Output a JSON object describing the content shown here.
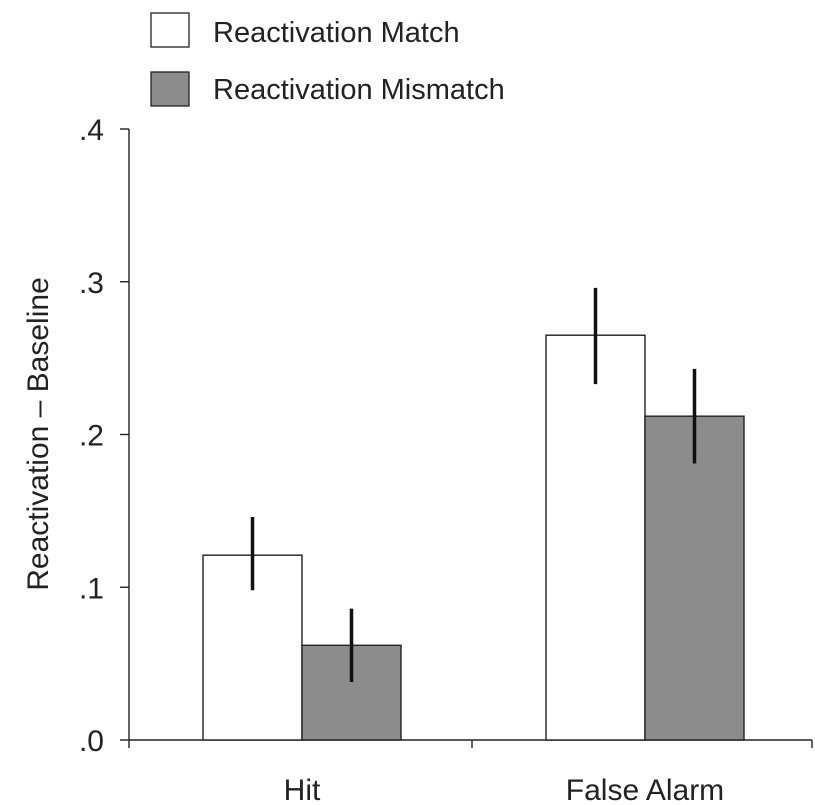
{
  "chart_data": {
    "type": "bar",
    "title": "",
    "xlabel": "",
    "ylabel": "Reactivation – Baseline",
    "ylim": [
      0,
      0.4
    ],
    "yticks": [
      0.0,
      0.1,
      0.2,
      0.3,
      0.4
    ],
    "ytick_labels": [
      ".0",
      ".1",
      ".2",
      ".3",
      ".4"
    ],
    "categories": [
      "Hit",
      "False Alarm"
    ],
    "series": [
      {
        "name": "Reactivation Match",
        "color": "#ffffff",
        "values": [
          0.121,
          0.265
        ],
        "error_low": [
          0.098,
          0.233
        ],
        "error_high": [
          0.146,
          0.296
        ]
      },
      {
        "name": "Reactivation Mismatch",
        "color": "#8c8c8c",
        "values": [
          0.062,
          0.212
        ],
        "error_low": [
          0.038,
          0.181
        ],
        "error_high": [
          0.086,
          0.243
        ]
      }
    ],
    "legend_position": "top-left",
    "grid": false
  }
}
